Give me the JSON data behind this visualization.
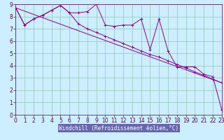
{
  "xlabel": "Windchill (Refroidissement éolien,°C)",
  "bg_color": "#cceeff",
  "line_color": "#880088",
  "grid_color": "#99ccbb",
  "xlim": [
    0,
    23
  ],
  "ylim": [
    0,
    9
  ],
  "xticks": [
    0,
    1,
    2,
    3,
    4,
    5,
    6,
    7,
    8,
    9,
    10,
    11,
    12,
    13,
    14,
    15,
    16,
    17,
    18,
    19,
    20,
    21,
    22,
    23
  ],
  "yticks": [
    0,
    1,
    2,
    3,
    4,
    5,
    6,
    7,
    8,
    9
  ],
  "line1_x": [
    0,
    1,
    2,
    3,
    4,
    5,
    6,
    7,
    8,
    9,
    10,
    11,
    12,
    13,
    14,
    15,
    16,
    17,
    18,
    19,
    20,
    21,
    22,
    23
  ],
  "line1_y": [
    8.7,
    7.3,
    7.8,
    8.1,
    8.5,
    8.9,
    8.3,
    8.3,
    8.4,
    9.0,
    7.3,
    7.2,
    7.3,
    7.3,
    7.8,
    5.3,
    7.8,
    5.2,
    3.9,
    3.9,
    3.9,
    3.3,
    3.1,
    0.4
  ],
  "line2_x": [
    0,
    1,
    2,
    3,
    4,
    5,
    6,
    7,
    8,
    9,
    10,
    11,
    12,
    13,
    14,
    15,
    16,
    17,
    18,
    19,
    20,
    21,
    22,
    23
  ],
  "line2_y": [
    8.7,
    7.3,
    7.8,
    8.1,
    8.5,
    8.9,
    8.3,
    7.4,
    7.0,
    6.7,
    6.4,
    6.1,
    5.8,
    5.5,
    5.2,
    4.9,
    4.7,
    4.4,
    4.1,
    3.8,
    3.5,
    3.2,
    2.9,
    2.6
  ],
  "line3_x": [
    0,
    23
  ],
  "line3_y": [
    8.7,
    2.6
  ],
  "font_color": "#550055",
  "xlabel_bg": "#6666aa",
  "xlabel_text_color": "#ffffff",
  "tick_fontsize": 5.5,
  "xlabel_fontsize": 5.5
}
